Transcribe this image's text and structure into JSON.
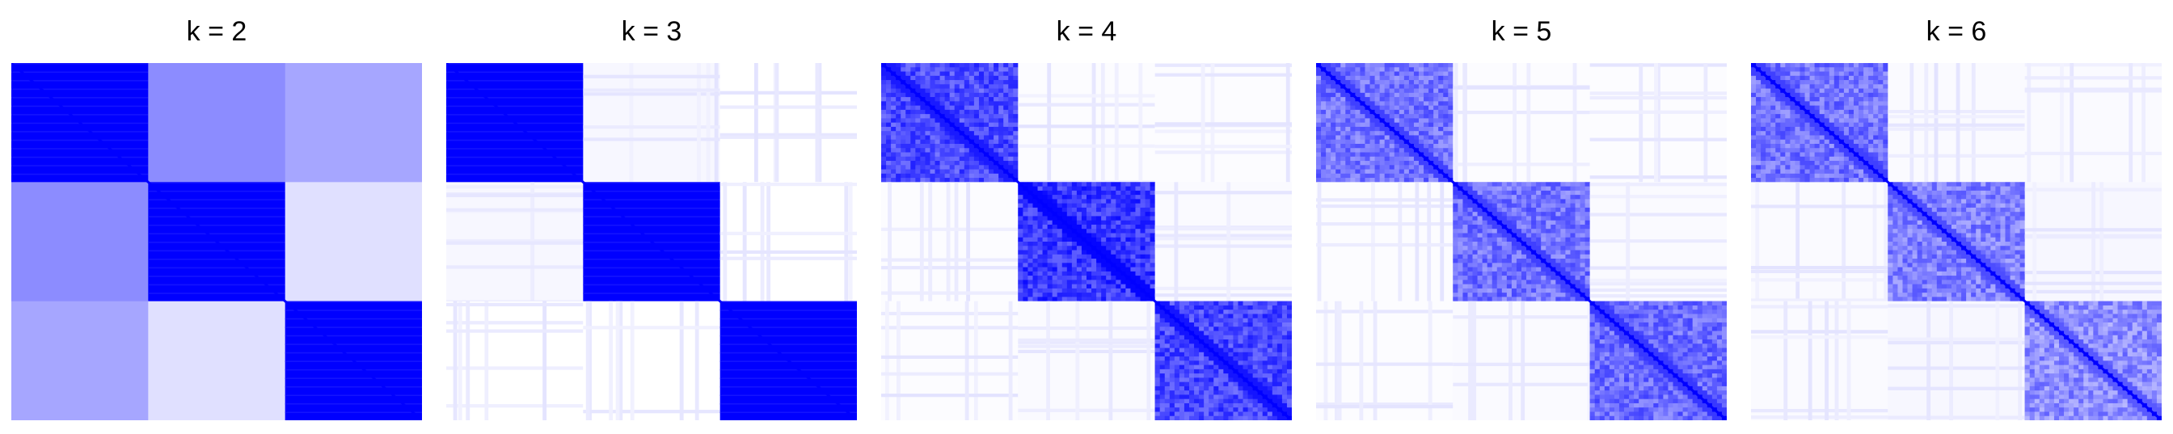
{
  "chart_data": [
    {
      "type": "heatmap",
      "title": "k = 2",
      "n_blocks": 3,
      "diagonal_value": 1.0,
      "within_block": [
        1.0,
        1.0,
        1.0
      ],
      "between_block": [
        [
          1.0,
          0.45,
          0.35
        ],
        [
          0.45,
          1.0,
          0.12
        ],
        [
          0.35,
          0.12,
          1.0
        ]
      ],
      "colorscale": [
        "#ffffff",
        "#0000ff"
      ]
    },
    {
      "type": "heatmap",
      "title": "k = 3",
      "n_blocks": 3,
      "diagonal_value": 1.0,
      "within_block": [
        1.0,
        1.0,
        1.0
      ],
      "between_block": [
        [
          1.0,
          0.03,
          0.0
        ],
        [
          0.03,
          1.0,
          0.0
        ],
        [
          0.0,
          0.0,
          1.0
        ]
      ],
      "colorscale": [
        "#ffffff",
        "#0000ff"
      ]
    },
    {
      "type": "heatmap",
      "title": "k = 4",
      "n_blocks": 3,
      "diagonal_value": 1.0,
      "within_block": [
        0.7,
        0.78,
        0.72
      ],
      "between_block": [
        [
          0.7,
          0.01,
          0.01
        ],
        [
          0.01,
          0.78,
          0.02
        ],
        [
          0.01,
          0.02,
          0.72
        ]
      ],
      "colorscale": [
        "#ffffff",
        "#0000ff"
      ]
    },
    {
      "type": "heatmap",
      "title": "k = 5",
      "n_blocks": 3,
      "diagonal_value": 1.0,
      "within_block": [
        0.55,
        0.55,
        0.58
      ],
      "between_block": [
        [
          0.55,
          0.01,
          0.01
        ],
        [
          0.01,
          0.55,
          0.02
        ],
        [
          0.01,
          0.02,
          0.58
        ]
      ],
      "colorscale": [
        "#ffffff",
        "#0000ff"
      ]
    },
    {
      "type": "heatmap",
      "title": "k = 6",
      "n_blocks": 3,
      "diagonal_value": 1.0,
      "within_block": [
        0.55,
        0.5,
        0.45
      ],
      "between_block": [
        [
          0.55,
          0.02,
          0.02
        ],
        [
          0.02,
          0.5,
          0.03
        ],
        [
          0.02,
          0.03,
          0.45
        ]
      ],
      "colorscale": [
        "#ffffff",
        "#0000ff"
      ]
    }
  ]
}
